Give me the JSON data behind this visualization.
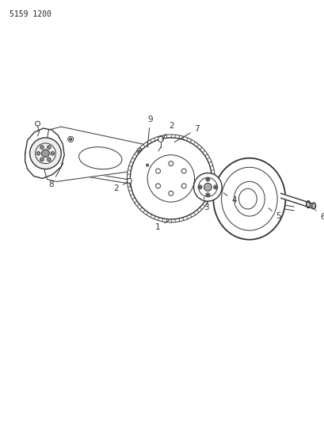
{
  "bg_color": "#ffffff",
  "line_color": "#333333",
  "label_color": "#222222",
  "watermark": "5159 1200",
  "watermark_fontsize": 7,
  "fig_width": 4.1,
  "fig_height": 5.33,
  "dpi": 100
}
